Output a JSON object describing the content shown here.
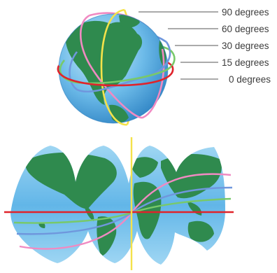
{
  "labels": {
    "deg90": "90 degrees",
    "deg60": "60 degrees",
    "deg30": "30 degrees",
    "deg15": "15 degrees",
    "deg0": "0 degrees"
  },
  "colors": {
    "ocean": "#5fb3e6",
    "ocean_light": "#bfe4f7",
    "land": "#2f8a4e",
    "orbit_90": "#f4e24a",
    "orbit_60": "#f08ac2",
    "orbit_30": "#6f97dd",
    "orbit_15": "#78c96a",
    "orbit_0": "#e0232b",
    "leader_line": "#555555"
  }
}
